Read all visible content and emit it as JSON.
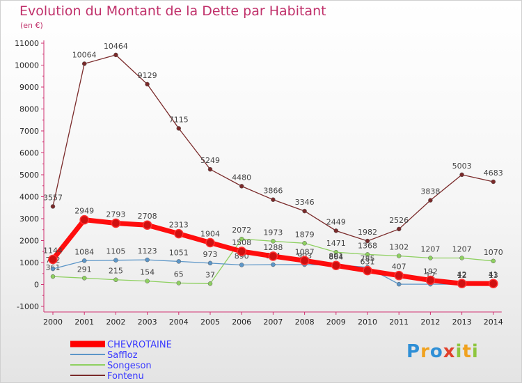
{
  "chart_data": {
    "type": "line",
    "title": "Evolution du Montant de la Dette par Habitant",
    "subtitle": "(en €)",
    "categories": [
      "2000",
      "2001",
      "2002",
      "2003",
      "2004",
      "2005",
      "2006",
      "2007",
      "2008",
      "2009",
      "2010",
      "2011",
      "2012",
      "2013",
      "2014"
    ],
    "ylim": [
      -1000,
      11000
    ],
    "yticks": [
      -1000,
      0,
      1000,
      2000,
      3000,
      4000,
      5000,
      6000,
      7000,
      8000,
      9000,
      10000,
      11000
    ],
    "grid": false,
    "legend_position": "bottom-left",
    "series": [
      {
        "name": "CHEVROTAINE",
        "color": "#ff0000",
        "values": [
          1144,
          2949,
          2793,
          2708,
          2313,
          1904,
          1508,
          1288,
          1087,
          864,
          631,
          407,
          192,
          42,
          41
        ]
      },
      {
        "name": "Saffloz",
        "color": "#5c96c8",
        "values": [
          712,
          1084,
          1105,
          1123,
          1051,
          973,
          890,
          904,
          903,
          891,
          785,
          12,
          12,
          12,
          13
        ]
      },
      {
        "name": "Songeson",
        "color": "#8ed060",
        "values": [
          361,
          291,
          215,
          154,
          65,
          37,
          2072,
          1973,
          1879,
          1471,
          1368,
          1302,
          1207,
          1207,
          1070
        ]
      },
      {
        "name": "Fontenu",
        "color": "#7a2a2a",
        "values": [
          3557,
          10064,
          10464,
          9129,
          7115,
          5249,
          4480,
          3866,
          3346,
          2449,
          1982,
          2526,
          3838,
          5003,
          4683
        ]
      }
    ]
  },
  "logo": {
    "letters": [
      "P",
      "r",
      "o",
      "x",
      "i",
      "t",
      "i"
    ],
    "colors": [
      "#2f8fd6",
      "#f0a21f",
      "#2f8fd6",
      "#e1402b",
      "#8ec63f",
      "#f0a21f",
      "#8ec63f"
    ]
  }
}
